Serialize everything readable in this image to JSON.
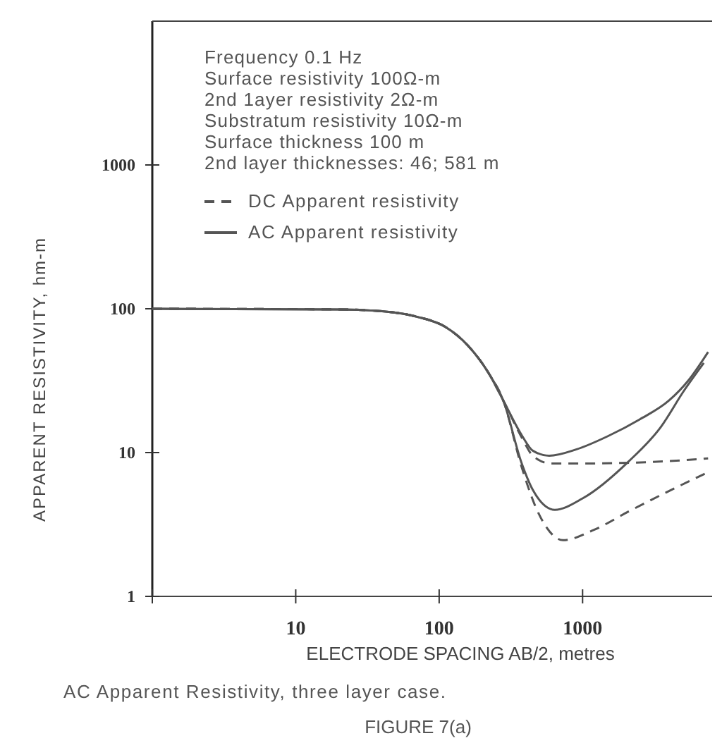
{
  "chart_data": {
    "type": "line",
    "xlabel": "ELECTRODE SPACING AB/2, metres",
    "ylabel": "APPARENT RESISTIVITY, hm-m",
    "log": "xy",
    "xlim": [
      1,
      8000
    ],
    "ylim": [
      1,
      10000
    ],
    "xticks": [
      {
        "value": 1,
        "label": null
      },
      10,
      100,
      1000
    ],
    "yticks": [
      1,
      10,
      100,
      1000
    ],
    "legend": "top",
    "grid": false,
    "annotations": [
      "Frequency 0.1 Hz",
      "Surface resistivity 100Ω-m",
      "2nd 1ayer resistivity 2Ω-m",
      "Substratum resistivity 10Ω-m",
      "Surface thickness 100 m",
      "2nd layer thicknesses: 46; 581 m",
      "AC Apparent Resistivity, three layer case.",
      "FIGURE 7(a)"
    ],
    "series": [
      {
        "name": "DC Apparent resistivity",
        "color": "#555555",
        "line_style": "dashed",
        "x": [
          1,
          20,
          40,
          70,
          110,
          160,
          220,
          280,
          380,
          450,
          600,
          1000,
          3000,
          7500
        ],
        "values": [
          100,
          99,
          96,
          88,
          75,
          55,
          36,
          23,
          12.5,
          9.5,
          8.4,
          8.4,
          8.6,
          9.1
        ]
      },
      {
        "color": "#555555",
        "line_style": "dashed",
        "x": [
          1,
          20,
          40,
          70,
          110,
          160,
          220,
          280,
          375,
          470,
          550,
          730,
          1200,
          2100,
          4000,
          7500
        ],
        "values": [
          100,
          99,
          96,
          88,
          75,
          55,
          36,
          23,
          8,
          4.2,
          3.1,
          2.46,
          2.9,
          3.9,
          5.4,
          7.3
        ]
      },
      {
        "name": "AC Apparent resistivity",
        "color": "#555555",
        "line_style": "solid",
        "x": [
          1,
          20,
          40,
          70,
          110,
          160,
          220,
          280,
          380,
          450,
          585,
          900,
          1500,
          2500,
          4000,
          5500,
          7500
        ],
        "values": [
          100,
          99,
          96,
          88,
          75,
          55,
          36,
          23,
          13,
          10.3,
          9.5,
          10.5,
          13,
          17,
          23,
          32,
          50
        ]
      },
      {
        "color": "#555555",
        "line_style": "solid",
        "x": [
          1,
          20,
          40,
          70,
          110,
          160,
          220,
          280,
          375,
          450,
          640,
          1000,
          2100,
          3500,
          5100,
          7000
        ],
        "values": [
          100,
          99,
          96,
          88,
          75,
          55,
          36,
          23,
          8.5,
          5.5,
          4,
          4.8,
          8.7,
          15,
          27,
          42
        ]
      }
    ]
  }
}
